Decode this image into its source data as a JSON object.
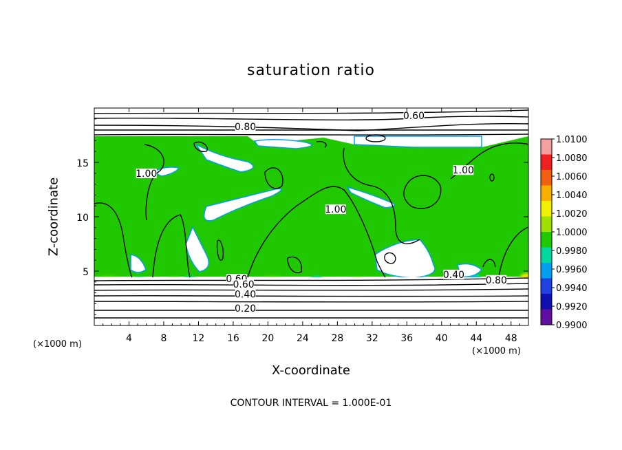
{
  "chart_data": {
    "type": "heatmap",
    "title": "saturation ratio",
    "xlabel": "X-coordinate",
    "ylabel": "Z-coordinate",
    "x_unit": "(×1000 m)",
    "footnote": "CONTOUR INTERVAL = 1.000E-01",
    "xlim": [
      0,
      50
    ],
    "ylim": [
      0,
      20
    ],
    "x_ticks": [
      4,
      8,
      12,
      16,
      20,
      24,
      28,
      32,
      36,
      40,
      44,
      48
    ],
    "y_ticks": [
      5,
      10,
      15
    ],
    "colorbar": {
      "ticks": [
        "1.0100",
        "1.0080",
        "1.0060",
        "1.0040",
        "1.0020",
        "1.0000",
        "0.9980",
        "0.9960",
        "0.9940",
        "0.9920",
        "0.9900"
      ],
      "colors": [
        "#f4a0a0",
        "#f02020",
        "#f06010",
        "#f8b000",
        "#f0f000",
        "#a0e000",
        "#20c800",
        "#00d8a0",
        "#00a0f0",
        "#2040e0",
        "#1010b0",
        "#6010a0"
      ]
    },
    "contour_labels": [
      {
        "text": "0.60",
        "x": 36.8,
        "z": 19.1
      },
      {
        "text": "0.80",
        "x": 17.4,
        "z": 18.1
      },
      {
        "text": "1.00",
        "x": 6.0,
        "z": 13.8
      },
      {
        "text": "1.00",
        "x": 27.8,
        "z": 10.5
      },
      {
        "text": "1.00",
        "x": 42.5,
        "z": 14.1
      },
      {
        "text": "0.80",
        "x": 46.3,
        "z": 4.0
      },
      {
        "text": "0.60",
        "x": 16.4,
        "z": 4.1
      },
      {
        "text": "0.60",
        "x": 17.2,
        "z": 3.6
      },
      {
        "text": "0.40",
        "x": 17.4,
        "z": 2.7
      },
      {
        "text": "0.20",
        "x": 17.4,
        "z": 1.4
      },
      {
        "text": "0.40",
        "x": 41.4,
        "z": 4.5
      }
    ]
  }
}
